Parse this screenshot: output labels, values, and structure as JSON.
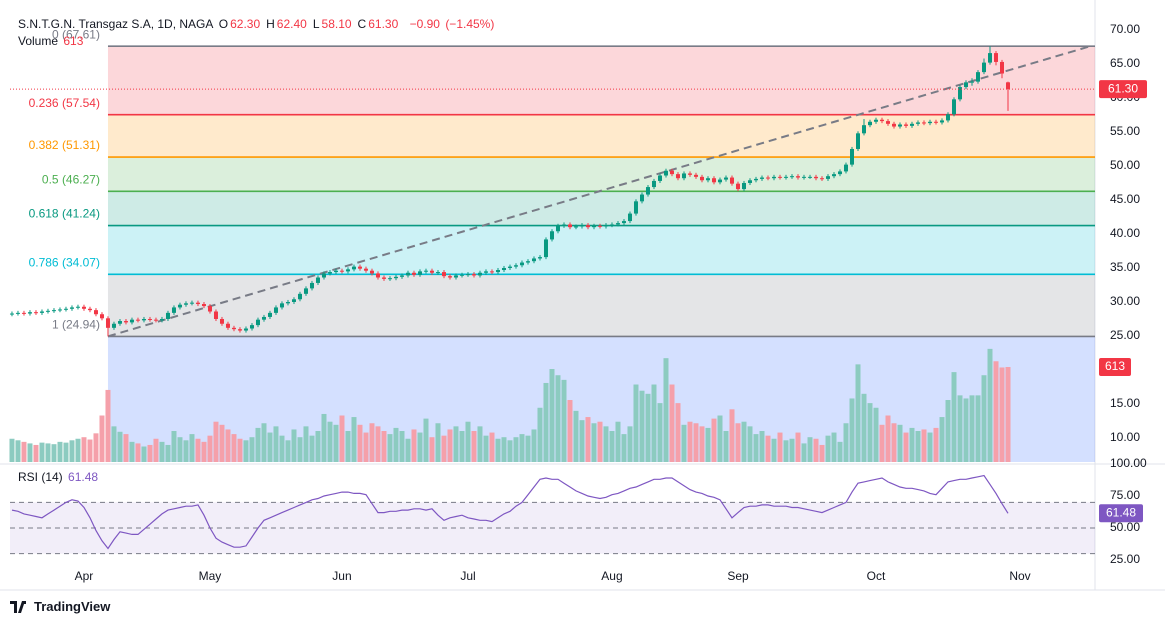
{
  "header": {
    "symbol": "S.N.T.G.N. Transgaz S.A, 1D, NAGA",
    "ohlc": [
      {
        "key": "O",
        "value": 62.3,
        "label": "62.30"
      },
      {
        "key": "H",
        "value": 62.4,
        "label": "62.40"
      },
      {
        "key": "L",
        "value": 58.1,
        "label": "58.10"
      },
      {
        "key": "C",
        "value": 61.3,
        "label": "61.30"
      }
    ],
    "change": {
      "value": -0.9,
      "label": "−0.90"
    },
    "change_pct": {
      "value": -1.45,
      "label": "(−1.45%)"
    }
  },
  "footer": {
    "brand": "TradingView"
  },
  "chart_data": [
    {
      "type": "candlestick",
      "up_color": "#089981",
      "down_color": "#f23645",
      "xlim": [
        -0.33,
        180.5
      ],
      "xticks": [
        {
          "value": 12,
          "label": "Apr"
        },
        {
          "value": 33,
          "label": "May"
        },
        {
          "value": 55,
          "label": "Jun"
        },
        {
          "value": 76,
          "label": "Jul"
        },
        {
          "value": 100,
          "label": "Aug"
        },
        {
          "value": 121,
          "label": "Sep"
        },
        {
          "value": 144,
          "label": "Oct"
        },
        {
          "value": 168,
          "label": "Nov"
        }
      ],
      "ylim": [
        6.47,
        71.76
      ],
      "yticks": [
        {
          "value": 70,
          "label": "70.00"
        },
        {
          "value": 65,
          "label": "65.00"
        },
        {
          "value": 60,
          "label": "60.00"
        },
        {
          "value": 55,
          "label": "55.00"
        },
        {
          "value": 50,
          "label": "50.00"
        },
        {
          "value": 45,
          "label": "45.00"
        },
        {
          "value": 40,
          "label": "40.00"
        },
        {
          "value": 35,
          "label": "35.00"
        },
        {
          "value": 30,
          "label": "30.00"
        },
        {
          "value": 25,
          "label": "25.00"
        },
        {
          "value": 15,
          "label": "15.00"
        },
        {
          "value": 10,
          "label": "10.00"
        }
      ],
      "last_price": {
        "value": 61.3,
        "label": "61.30"
      },
      "open": [
        28.2,
        28.3,
        28.4,
        28.3,
        28.5,
        28.4,
        28.6,
        28.7,
        28.8,
        28.9,
        29.0,
        29.2,
        29.3,
        29.0,
        28.8,
        28.2,
        27.6,
        26.2,
        26.8,
        27.2,
        27.0,
        27.4,
        27.3,
        27.5,
        27.4,
        27.3,
        27.5,
        28.4,
        29.2,
        29.6,
        29.8,
        29.9,
        29.7,
        29.4,
        28.6,
        27.5,
        26.8,
        26.2,
        26.0,
        25.8,
        26.1,
        26.6,
        27.4,
        27.8,
        28.4,
        29.2,
        29.8,
        30.0,
        30.4,
        31.2,
        32.0,
        32.8,
        33.6,
        34.2,
        34.4,
        34.6,
        34.5,
        34.8,
        35.2,
        34.9,
        34.6,
        34.2,
        33.6,
        33.4,
        33.5,
        33.7,
        33.9,
        34.3,
        34.0,
        34.5,
        34.6,
        34.3,
        34.4,
        33.8,
        33.6,
        33.9,
        34.0,
        34.1,
        33.9,
        34.3,
        34.5,
        34.4,
        34.7,
        35.0,
        35.2,
        35.4,
        35.8,
        36.0,
        36.4,
        36.6,
        39.2,
        40.4,
        41.2,
        41.4,
        41.0,
        41.1,
        41.3,
        41.0,
        41.2,
        41.1,
        41.3,
        41.4,
        41.6,
        41.9,
        43.0,
        44.8,
        45.8,
        46.9,
        47.8,
        48.6,
        49.3,
        48.8,
        48.2,
        48.9,
        48.7,
        48.4,
        47.9,
        48.2,
        47.6,
        48.0,
        48.3,
        47.4,
        46.6,
        47.5,
        47.9,
        48.1,
        48.3,
        48.2,
        48.4,
        48.3,
        48.4,
        48.5,
        48.3,
        48.4,
        48.4,
        48.2,
        48.1,
        48.5,
        48.8,
        49.2,
        50.2,
        52.5,
        54.8,
        56.0,
        56.5,
        56.8,
        56.6,
        56.2,
        55.8,
        56.1,
        55.9,
        56.2,
        56.4,
        56.3,
        56.5,
        56.4,
        56.7,
        57.6,
        59.8,
        61.6,
        62.3,
        62.4,
        63.8,
        65.2,
        66.6,
        65.3,
        62.3
      ],
      "high": [
        28.6,
        28.7,
        28.7,
        28.8,
        28.8,
        28.9,
        29.0,
        29.1,
        29.2,
        29.3,
        29.5,
        29.6,
        29.6,
        29.3,
        29.1,
        28.5,
        27.9,
        27.1,
        27.5,
        27.5,
        27.7,
        27.7,
        27.8,
        27.8,
        27.7,
        27.8,
        28.7,
        29.5,
        29.9,
        30.1,
        30.2,
        30.2,
        30.0,
        29.7,
        28.9,
        27.8,
        27.1,
        26.5,
        26.3,
        26.4,
        26.9,
        27.7,
        28.1,
        28.7,
        29.5,
        30.1,
        30.3,
        30.7,
        31.5,
        32.3,
        33.1,
        33.9,
        34.5,
        34.7,
        34.9,
        34.9,
        35.1,
        35.5,
        35.5,
        35.2,
        34.9,
        34.5,
        33.9,
        33.8,
        34.0,
        34.2,
        34.6,
        34.6,
        34.8,
        34.9,
        34.9,
        34.7,
        34.7,
        34.1,
        34.2,
        34.3,
        34.4,
        34.4,
        34.6,
        34.8,
        34.8,
        35.0,
        35.3,
        35.5,
        35.7,
        36.1,
        36.3,
        36.7,
        36.9,
        39.5,
        40.7,
        41.5,
        41.7,
        41.7,
        41.4,
        41.6,
        41.6,
        41.5,
        41.5,
        41.6,
        41.7,
        41.9,
        42.2,
        43.3,
        45.1,
        46.1,
        47.2,
        48.1,
        48.9,
        49.6,
        49.6,
        49.1,
        49.2,
        49.2,
        49.0,
        48.7,
        48.5,
        48.5,
        48.3,
        48.6,
        48.6,
        47.7,
        47.8,
        48.2,
        48.4,
        48.6,
        48.6,
        48.7,
        48.7,
        48.7,
        48.8,
        48.8,
        48.7,
        48.7,
        48.7,
        48.5,
        48.8,
        49.1,
        49.5,
        50.5,
        52.8,
        55.1,
        56.9,
        56.8,
        57.1,
        57.1,
        56.9,
        56.5,
        56.4,
        56.4,
        56.5,
        56.7,
        56.7,
        56.8,
        56.8,
        57.0,
        57.9,
        60.1,
        61.9,
        62.6,
        62.9,
        64.1,
        65.8,
        67.61,
        66.9,
        65.6,
        62.4
      ],
      "low": [
        27.9,
        28.0,
        28.0,
        28.0,
        28.1,
        28.1,
        28.3,
        28.4,
        28.5,
        28.6,
        28.7,
        28.9,
        28.7,
        28.5,
        27.9,
        27.3,
        24.94,
        25.9,
        26.5,
        26.7,
        26.7,
        27.0,
        27.0,
        27.1,
        27.0,
        27.0,
        27.2,
        28.1,
        28.9,
        29.3,
        29.5,
        29.4,
        29.1,
        28.3,
        27.2,
        26.5,
        25.9,
        25.7,
        25.5,
        25.5,
        25.8,
        26.3,
        27.1,
        27.5,
        28.1,
        28.9,
        29.5,
        29.7,
        30.1,
        30.9,
        31.7,
        32.5,
        33.3,
        33.9,
        34.1,
        34.2,
        34.2,
        34.5,
        34.6,
        34.3,
        33.9,
        33.3,
        33.1,
        33.1,
        33.2,
        33.4,
        33.6,
        33.7,
        33.7,
        34.2,
        34.0,
        34.0,
        33.5,
        33.3,
        33.3,
        33.6,
        33.7,
        33.6,
        33.6,
        34.0,
        34.1,
        34.1,
        34.4,
        34.7,
        34.9,
        35.1,
        35.5,
        35.7,
        36.1,
        36.3,
        38.9,
        40.1,
        40.9,
        40.7,
        40.7,
        40.8,
        40.7,
        40.7,
        40.8,
        40.8,
        41.0,
        41.1,
        41.3,
        41.6,
        42.7,
        44.5,
        45.5,
        46.6,
        47.5,
        48.3,
        48.5,
        47.9,
        47.9,
        48.4,
        48.1,
        47.6,
        47.6,
        47.3,
        47.3,
        47.7,
        47.1,
        46.3,
        46.3,
        47.2,
        47.6,
        47.8,
        47.9,
        47.9,
        48.0,
        48.0,
        48.1,
        48.0,
        48.0,
        48.1,
        47.9,
        47.8,
        47.8,
        48.2,
        48.5,
        48.9,
        49.9,
        52.2,
        54.5,
        55.7,
        56.2,
        56.3,
        55.9,
        55.5,
        55.5,
        55.6,
        55.6,
        55.9,
        56.0,
        56.0,
        56.1,
        56.1,
        56.4,
        57.3,
        59.5,
        61.3,
        61.8,
        62.1,
        63.5,
        64.9,
        64.8,
        62.9,
        58.1
      ],
      "close": [
        28.3,
        28.4,
        28.3,
        28.5,
        28.4,
        28.6,
        28.7,
        28.8,
        28.9,
        29.0,
        29.2,
        29.3,
        29.0,
        28.8,
        28.2,
        27.6,
        26.2,
        26.8,
        27.2,
        27.0,
        27.4,
        27.3,
        27.5,
        27.4,
        27.3,
        27.5,
        28.4,
        29.2,
        29.6,
        29.8,
        29.9,
        29.7,
        29.4,
        28.6,
        27.5,
        26.8,
        26.2,
        26.0,
        25.8,
        26.1,
        26.6,
        27.4,
        27.8,
        28.4,
        29.2,
        29.8,
        30.0,
        30.4,
        31.2,
        32.0,
        32.8,
        33.6,
        34.2,
        34.4,
        34.6,
        34.5,
        34.8,
        35.2,
        34.9,
        34.6,
        34.2,
        33.6,
        33.4,
        33.5,
        33.7,
        33.9,
        34.3,
        34.0,
        34.5,
        34.6,
        34.3,
        34.4,
        33.8,
        33.6,
        33.9,
        34.0,
        34.1,
        33.9,
        34.3,
        34.5,
        34.4,
        34.7,
        35.0,
        35.2,
        35.4,
        35.8,
        36.0,
        36.4,
        36.6,
        39.2,
        40.4,
        41.2,
        41.4,
        41.0,
        41.1,
        41.3,
        41.0,
        41.2,
        41.1,
        41.3,
        41.4,
        41.6,
        41.9,
        43.0,
        44.8,
        45.8,
        46.9,
        47.8,
        48.6,
        49.3,
        48.8,
        48.2,
        48.9,
        48.7,
        48.4,
        47.9,
        48.2,
        47.6,
        48.0,
        48.3,
        47.4,
        46.6,
        47.5,
        47.9,
        48.1,
        48.3,
        48.2,
        48.4,
        48.3,
        48.4,
        48.5,
        48.3,
        48.4,
        48.4,
        48.2,
        48.1,
        48.5,
        48.8,
        49.2,
        50.2,
        52.5,
        54.8,
        56.0,
        56.5,
        56.8,
        56.6,
        56.2,
        55.8,
        56.1,
        55.9,
        56.2,
        56.4,
        56.3,
        56.5,
        56.4,
        56.7,
        57.6,
        59.8,
        61.6,
        62.3,
        62.4,
        63.8,
        65.2,
        66.6,
        65.3,
        63.6,
        61.3
      ],
      "fib": {
        "x_start": 16,
        "below_color": "#2962ff",
        "levels": [
          {
            "value": 67.61,
            "label": "0 (67.61)",
            "color": "#787b86"
          },
          {
            "value": 57.54,
            "label": "0.236 (57.54)",
            "color": "#f23645"
          },
          {
            "value": 51.31,
            "label": "0.382 (51.31)",
            "color": "#ff9800"
          },
          {
            "value": 46.27,
            "label": "0.5 (46.27)",
            "color": "#4caf50"
          },
          {
            "value": 41.24,
            "label": "0.618 (41.24)",
            "color": "#089981"
          },
          {
            "value": 34.07,
            "label": "0.786 (34.07)",
            "color": "#00bcd4"
          },
          {
            "value": 24.94,
            "label": "1 (24.94)",
            "color": "#787b86"
          }
        ]
      },
      "trendline": {
        "x": [
          16,
          179.7
        ],
        "y": [
          24.94,
          67.61
        ],
        "color": "#787b86"
      }
    },
    {
      "type": "bar",
      "title": "Volume",
      "up_color": "#8ccbc0",
      "down_color": "#f5a0aa",
      "ylim": [
        0,
        2865
      ],
      "values": [
        150,
        140,
        130,
        120,
        110,
        125,
        120,
        115,
        130,
        125,
        140,
        150,
        160,
        145,
        185,
        300,
        465,
        230,
        195,
        180,
        130,
        120,
        100,
        110,
        150,
        130,
        110,
        200,
        160,
        140,
        180,
        150,
        130,
        170,
        260,
        240,
        210,
        180,
        150,
        140,
        160,
        220,
        250,
        190,
        230,
        170,
        140,
        210,
        160,
        230,
        170,
        200,
        310,
        260,
        240,
        300,
        200,
        290,
        240,
        190,
        250,
        230,
        200,
        180,
        220,
        200,
        150,
        210,
        190,
        280,
        160,
        250,
        170,
        210,
        230,
        200,
        260,
        200,
        230,
        170,
        190,
        150,
        160,
        140,
        160,
        180,
        170,
        210,
        350,
        510,
        600,
        560,
        530,
        400,
        330,
        270,
        290,
        250,
        260,
        230,
        200,
        260,
        180,
        230,
        500,
        460,
        440,
        500,
        380,
        670,
        500,
        380,
        240,
        260,
        250,
        230,
        220,
        280,
        300,
        200,
        340,
        250,
        260,
        230,
        180,
        200,
        170,
        150,
        190,
        140,
        150,
        190,
        120,
        160,
        150,
        110,
        170,
        190,
        130,
        250,
        410,
        630,
        440,
        380,
        350,
        240,
        300,
        250,
        240,
        190,
        220,
        200,
        210,
        190,
        220,
        290,
        400,
        580,
        430,
        410,
        430,
        430,
        560,
        730,
        650,
        610,
        613
      ]
    },
    {
      "type": "line",
      "title": "RSI (14)",
      "color": "#7e57c2",
      "band_color": "#7e57c2",
      "ylim": [
        1.6,
        98.4
      ],
      "yticks": [
        {
          "value": 100,
          "label": "100.00"
        },
        {
          "value": 75,
          "label": "75.00"
        },
        {
          "value": 50,
          "label": "50.00"
        },
        {
          "value": 25,
          "label": "25.00"
        }
      ],
      "levels": [
        70,
        50,
        30
      ],
      "values": [
        64,
        63,
        61,
        60,
        59,
        58,
        61,
        64,
        67,
        70,
        72,
        71,
        66,
        58,
        48,
        40,
        34,
        41,
        47,
        46,
        45,
        45,
        49,
        53,
        57,
        61,
        64,
        65,
        66,
        67,
        67,
        68,
        60,
        50,
        42,
        39,
        37,
        35,
        35,
        36,
        43,
        50,
        56,
        58,
        60,
        62,
        64,
        66,
        68,
        70,
        72,
        73,
        75,
        76,
        77,
        78,
        78,
        77,
        77,
        76,
        69,
        62,
        62,
        63,
        63,
        64,
        64,
        65,
        65,
        64,
        65,
        60,
        56,
        58,
        59,
        60,
        58,
        57,
        56,
        56,
        55,
        58,
        61,
        63,
        67,
        70,
        76,
        82,
        88,
        89,
        88,
        88,
        85,
        82,
        79,
        77,
        75,
        74,
        73,
        74,
        76,
        77,
        79,
        81,
        82,
        84,
        86,
        88,
        88,
        89,
        89,
        86,
        83,
        80,
        78,
        77,
        75,
        74,
        72,
        65,
        58,
        62,
        66,
        67,
        67,
        68,
        68,
        67,
        67,
        67,
        66,
        66,
        65,
        64,
        63,
        62,
        64,
        66,
        68,
        70,
        78,
        85,
        86,
        87,
        88,
        89,
        86,
        84,
        82,
        81,
        81,
        80,
        79,
        77,
        76,
        81,
        86,
        87,
        88,
        88,
        89,
        90,
        91,
        84,
        77,
        69,
        61.48
      ]
    }
  ]
}
